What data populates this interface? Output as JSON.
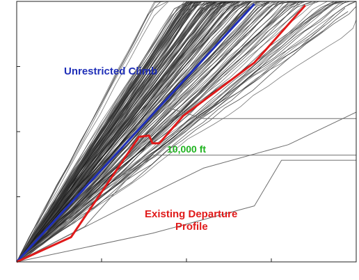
{
  "chart_data": {
    "type": "line",
    "title": "",
    "xlabel": "",
    "ylabel": "",
    "xlim": [
      0,
      100
    ],
    "ylim": [
      0,
      20000
    ],
    "grid": false,
    "x_ticks": [
      25,
      50,
      75
    ],
    "y_ticks": [
      5000,
      10000,
      15000
    ],
    "annotations": [
      {
        "id": "unrestricted",
        "text": "Unrestricted Climb",
        "color": "#1f2fb8"
      },
      {
        "id": "tenk",
        "text": "10,000 ft",
        "color": "#1fb31f"
      },
      {
        "id": "existing1",
        "text": "Existing Departure",
        "color": "#e01a1a"
      },
      {
        "id": "existing2",
        "text": "Profile",
        "color": "#e01a1a"
      }
    ],
    "series": [
      {
        "id": "unrestricted",
        "color": "#1f2fb8",
        "x": [
          0,
          70
        ],
        "y": [
          0,
          19800
        ]
      },
      {
        "id": "existing",
        "color": "#e01a1a",
        "x": [
          0,
          16,
          35,
          36,
          39,
          40,
          42,
          49,
          70,
          85
        ],
        "y": [
          0,
          1900,
          9200,
          9600,
          9700,
          9100,
          9100,
          11200,
          15300,
          19700
        ]
      },
      {
        "id": "level-off-12500",
        "color": "#6e6e6e",
        "x": [
          0,
          14,
          30,
          45,
          55,
          100
        ],
        "y": [
          0,
          3000,
          7600,
          11800,
          11000,
          11000
        ]
      },
      {
        "id": "level-off-9000",
        "color": "#6e6e6e",
        "x": [
          0,
          20,
          32,
          40,
          100
        ],
        "y": [
          0,
          2700,
          6200,
          8200,
          8200
        ]
      },
      {
        "id": "slow-climb",
        "color": "#6e6e6e",
        "x": [
          0,
          40,
          70,
          78,
          100
        ],
        "y": [
          0,
          2200,
          4300,
          7800,
          7800
        ]
      },
      {
        "id": "lower-bound",
        "color": "#6e6e6e",
        "x": [
          0,
          30,
          55,
          80,
          100
        ],
        "y": [
          0,
          4000,
          7200,
          9000,
          11500
        ]
      }
    ]
  }
}
